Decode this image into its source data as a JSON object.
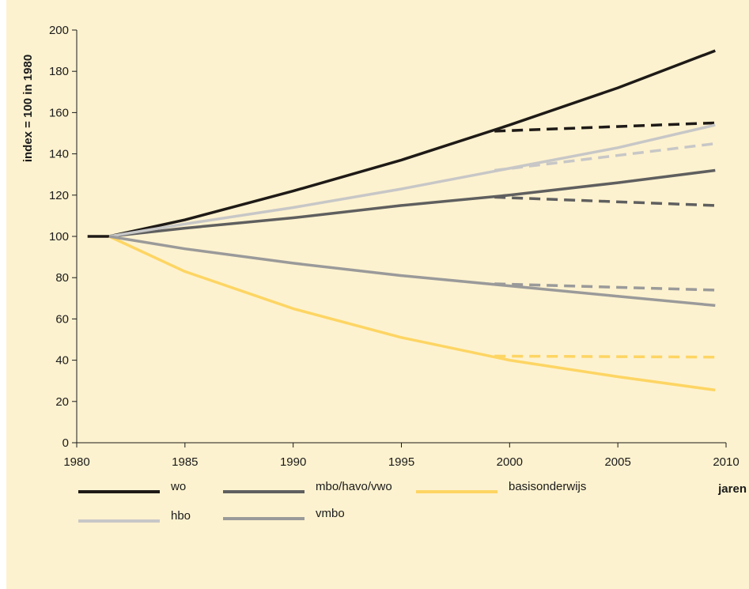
{
  "chart_data": {
    "type": "line",
    "ylabel": "index = 100 in 1980",
    "xlabel": "jaren",
    "xlim": [
      1980,
      2010
    ],
    "ylim": [
      0,
      200
    ],
    "x_ticks": [
      1980,
      1985,
      1990,
      1995,
      2000,
      2005,
      2010
    ],
    "y_ticks": [
      0,
      20,
      40,
      60,
      80,
      100,
      120,
      140,
      160,
      180,
      200
    ],
    "grid": false,
    "legend_position": "bottom",
    "series": [
      {
        "name": "wo",
        "color": "#1e1a17",
        "style": "solid",
        "x": [
          1980.5,
          1981.5,
          1985,
          1990,
          1995,
          2000,
          2005,
          2009.5
        ],
        "y": [
          100,
          100,
          108,
          122,
          137,
          154,
          172,
          190
        ]
      },
      {
        "name": "mbo/havo/vwo",
        "color": "#5f5f5f",
        "style": "solid",
        "x": [
          1981.5,
          1985,
          1990,
          1995,
          2000,
          2005,
          2009.5
        ],
        "y": [
          100,
          104,
          109,
          115,
          120,
          126,
          132
        ]
      },
      {
        "name": "basisonderwijs",
        "color": "#fdd563",
        "style": "solid",
        "x": [
          1981.5,
          1985,
          1990,
          1995,
          2000,
          2005,
          2009.5
        ],
        "y": [
          100,
          83,
          65,
          51,
          40,
          32,
          25.5
        ]
      },
      {
        "name": "hbo",
        "color": "#c7c7c7",
        "style": "solid",
        "x": [
          1981.5,
          1985,
          1990,
          1995,
          2000,
          2005,
          2009.5
        ],
        "y": [
          100,
          106,
          114,
          123,
          133,
          143,
          154
        ]
      },
      {
        "name": "vmbo",
        "color": "#9a9a9a",
        "style": "solid",
        "x": [
          1981.5,
          1985,
          1990,
          1995,
          2000,
          2005,
          2009.5
        ],
        "y": [
          100,
          94,
          87,
          81,
          76,
          71,
          66.5
        ]
      },
      {
        "color": "#1e1a17",
        "style": "dashed",
        "x": [
          1999.3,
          2009.5
        ],
        "y": [
          151,
          155
        ]
      },
      {
        "color": "#c7c7c7",
        "style": "dashed",
        "x": [
          1999.3,
          2009.5
        ],
        "y": [
          132,
          145
        ]
      },
      {
        "color": "#5f5f5f",
        "style": "dashed",
        "x": [
          1999.3,
          2009.5
        ],
        "y": [
          119,
          115
        ]
      },
      {
        "color": "#9a9a9a",
        "style": "dashed",
        "x": [
          1999.3,
          2009.5
        ],
        "y": [
          77,
          74
        ]
      },
      {
        "color": "#fdd563",
        "style": "dashed",
        "x": [
          1999.3,
          2009.5
        ],
        "y": [
          42,
          41.5
        ]
      }
    ]
  }
}
